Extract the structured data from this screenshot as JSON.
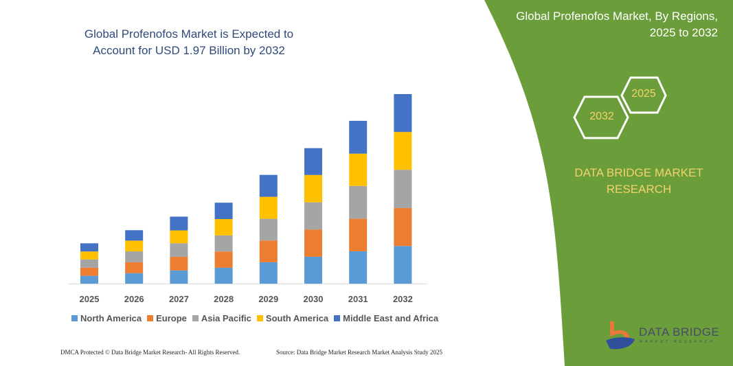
{
  "header": {
    "title": "Global Profenofos Market is Expected to Account for USD 1.97 Billion by 2032",
    "side_title_line1": "Global Profenofos Market, By Regions,",
    "side_title_line2": "2025 to 2032"
  },
  "badges": {
    "start_year": "2025",
    "end_year": "2032"
  },
  "brand": {
    "line1": "DATA BRIDGE MARKET",
    "line2": "RESEARCH",
    "logo_text": "DATA BRIDGE",
    "logo_sub": "MARKET RESEARCH"
  },
  "footer": {
    "left": "DMCA Protected © Data Bridge Market Research- All Rights Reserved.",
    "right": "Source: Data Bridge Market Research Market Analysis Study 2025"
  },
  "colors": {
    "panel_green": "#6b9e3a",
    "badge_text": "#f2d36b"
  },
  "chart_data": {
    "type": "bar",
    "stacked": true,
    "title": "Global Profenofos Market is Expected to Account for USD 1.97 Billion by 2032",
    "unit": "USD Billion (estimated)",
    "categories": [
      "2025",
      "2026",
      "2027",
      "2028",
      "2029",
      "2030",
      "2031",
      "2032"
    ],
    "series": [
      {
        "name": "North America",
        "color": "#5b9bd5",
        "values": [
          0.081,
          0.109,
          0.137,
          0.165,
          0.222,
          0.279,
          0.336,
          0.391
        ]
      },
      {
        "name": "Europe",
        "color": "#ed7d31",
        "values": [
          0.085,
          0.113,
          0.141,
          0.169,
          0.226,
          0.282,
          0.338,
          0.394
        ]
      },
      {
        "name": "Asia Pacific",
        "color": "#a5a5a5",
        "values": [
          0.085,
          0.113,
          0.141,
          0.167,
          0.226,
          0.284,
          0.341,
          0.398
        ]
      },
      {
        "name": "South America",
        "color": "#ffc000",
        "values": [
          0.083,
          0.112,
          0.134,
          0.17,
          0.228,
          0.284,
          0.336,
          0.393
        ]
      },
      {
        "name": "Middle East and Africa",
        "color": "#4472c4",
        "values": [
          0.085,
          0.108,
          0.143,
          0.17,
          0.228,
          0.279,
          0.341,
          0.394
        ]
      }
    ],
    "legend": "bottom",
    "grid": false,
    "y_axis_shown": false
  }
}
